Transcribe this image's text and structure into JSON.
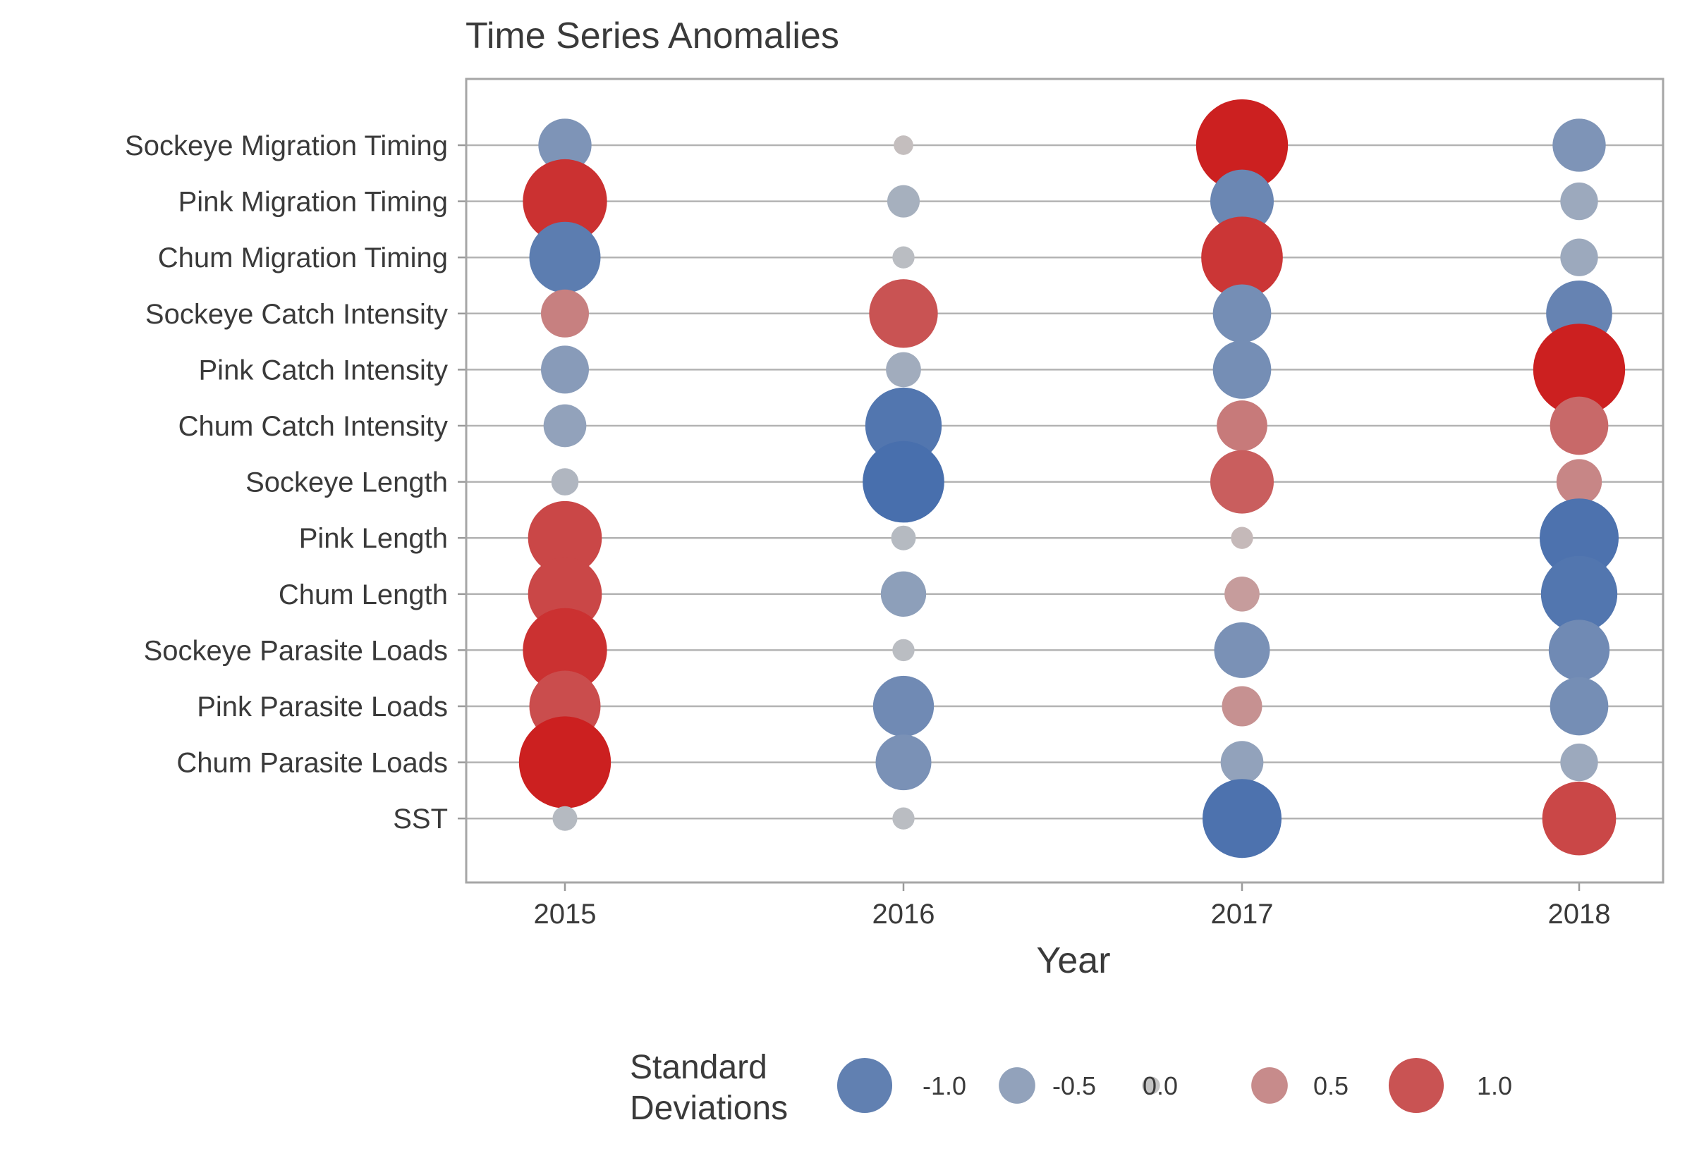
{
  "chart_data": {
    "type": "scatter",
    "title": "Time Series Anomalies",
    "xlabel": "Year",
    "ylabel": "",
    "x": [
      "2015",
      "2016",
      "2017",
      "2018"
    ],
    "categories": [
      "Sockeye Migration Timing",
      "Pink Migration Timing",
      "Chum Migration Timing",
      "Sockeye Catch Intensity",
      "Pink Catch Intensity",
      "Chum Catch Intensity",
      "Sockeye Length",
      "Pink Length",
      "Chum Length",
      "Sockeye Parasite Loads",
      "Pink Parasite Loads",
      "Chum Parasite Loads",
      "SST"
    ],
    "values": [
      [
        -0.7,
        0.05,
        1.45,
        -0.7
      ],
      [
        1.3,
        -0.3,
        -0.9,
        -0.4
      ],
      [
        -1.05,
        -0.1,
        1.25,
        -0.4
      ],
      [
        0.6,
        1.0,
        -0.8,
        -0.95
      ],
      [
        -0.6,
        -0.35,
        -0.8,
        1.45
      ],
      [
        -0.5,
        -1.15,
        0.65,
        0.8
      ],
      [
        -0.2,
        -1.25,
        0.9,
        0.55
      ],
      [
        1.1,
        -0.15,
        0.1,
        -1.2
      ],
      [
        1.1,
        -0.55,
        0.35,
        -1.15
      ],
      [
        1.3,
        -0.1,
        -0.75,
        -0.85
      ],
      [
        1.05,
        -0.85,
        0.45,
        -0.8
      ],
      [
        1.45,
        -0.75,
        -0.5,
        -0.4
      ],
      [
        -0.15,
        -0.1,
        -1.2,
        1.1
      ]
    ],
    "legend": {
      "title_line1": "Standard",
      "title_line2": "Deviations",
      "placement": "bottom",
      "entries": [
        {
          "label": "-1.0",
          "value": -1.0
        },
        {
          "label": "-0.5",
          "value": -0.5
        },
        {
          "label": "0.0",
          "value": 0.0
        },
        {
          "label": "0.5",
          "value": 0.5
        },
        {
          "label": "1.0",
          "value": 1.0
        }
      ]
    },
    "colors": {
      "negative": "#2f5ea8",
      "neutral": "#c4c4c4",
      "positive": "#cc1a1a"
    },
    "size_scale_max_abs": 1.5,
    "grid": true
  }
}
